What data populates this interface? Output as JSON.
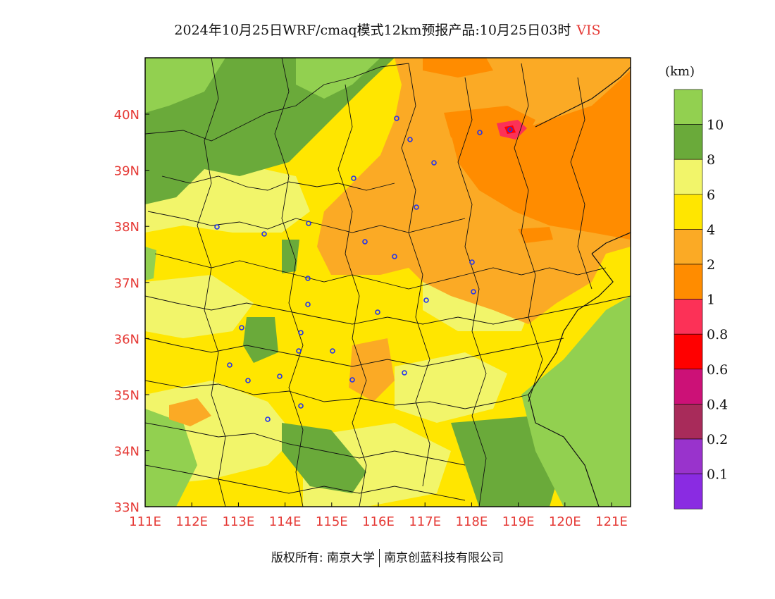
{
  "title": {
    "main": "2024年10月25日WRF/cmaq模式12km预报产品:10月25日03时",
    "variable": "VIS"
  },
  "legend": {
    "unit": "(km)",
    "levels": [
      "10",
      "8",
      "6",
      "4",
      "2",
      "1",
      "0.8",
      "0.6",
      "0.4",
      "0.2",
      "0.1"
    ],
    "colors": [
      "#92d050",
      "#6aaa3a",
      "#f2f56a",
      "#ffe600",
      "#fbaa25",
      "#ff8c00",
      "#fc3157",
      "#ff0000",
      "#cc1177",
      "#a82b5a",
      "#9933cc",
      "#8a2be2"
    ]
  },
  "axes": {
    "x_ticks": [
      "111E",
      "112E",
      "113E",
      "114E",
      "115E",
      "116E",
      "117E",
      "118E",
      "119E",
      "120E",
      "121E"
    ],
    "y_ticks": [
      "40N",
      "39N",
      "38N",
      "37N",
      "36N",
      "35N",
      "34N",
      "33N"
    ]
  },
  "footer": {
    "left": "版权所有: 南京大学",
    "right": "南京创蓝科技有限公司"
  }
}
